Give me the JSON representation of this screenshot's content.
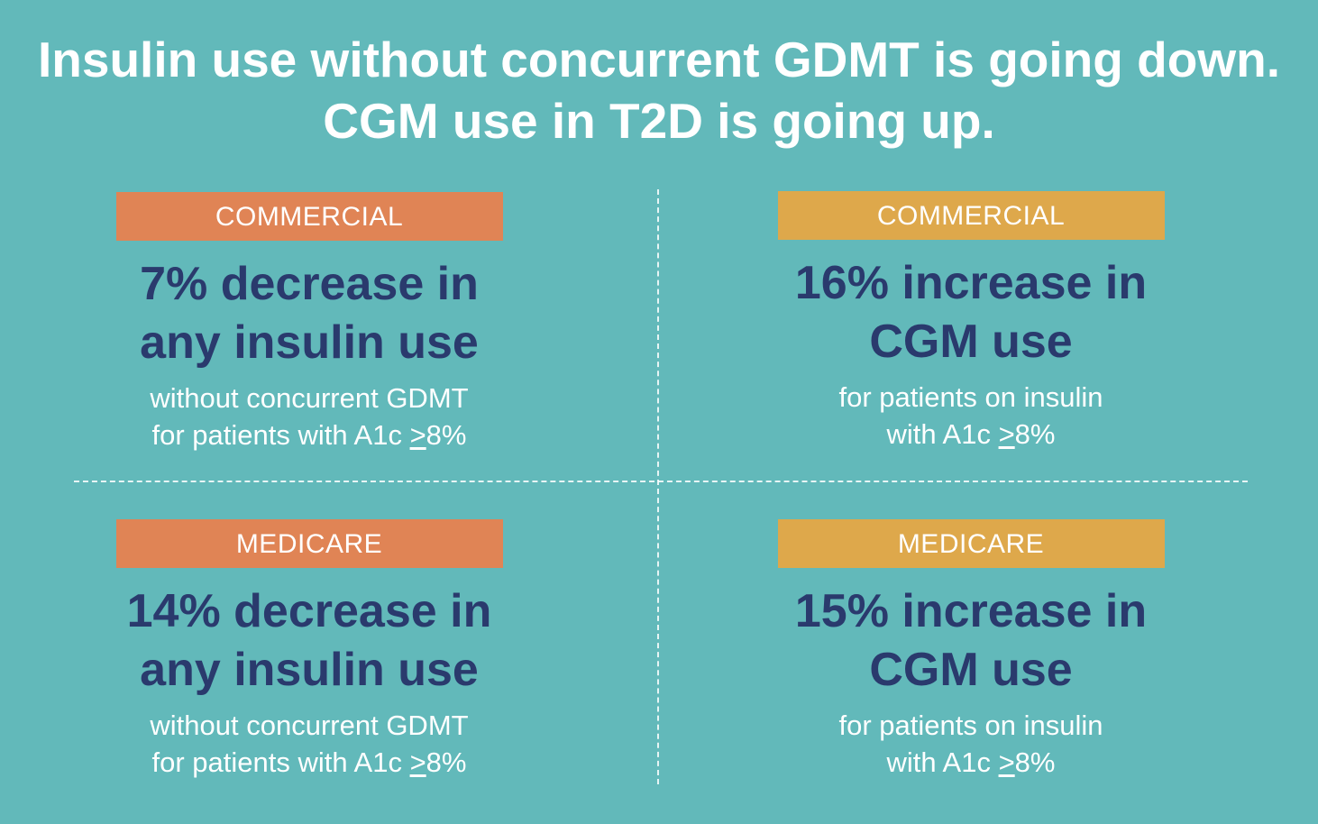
{
  "headline": {
    "line1": "Insulin use without concurrent GDMT is going down.",
    "line2": "CGM use in T2D is going up."
  },
  "colors": {
    "background": "#62b9ba",
    "badge_orange": "#e08455",
    "badge_gold": "#dea84b",
    "stat_navy": "#2a3a6d",
    "text_white": "#ffffff"
  },
  "cells": {
    "top_left": {
      "badge": "COMMERCIAL",
      "stat_line1": "7% decrease in",
      "stat_line2": "any insulin use",
      "sub_line1": "without concurrent GDMT",
      "sub_line2_prefix": "for patients with A1c ",
      "sub_line2_symbol": ">",
      "sub_line2_suffix": "8%"
    },
    "top_right": {
      "badge": "COMMERCIAL",
      "stat_line1": "16% increase in",
      "stat_line2": "CGM use",
      "sub_line1": "for patients on insulin",
      "sub_line2_prefix": "with A1c ",
      "sub_line2_symbol": ">",
      "sub_line2_suffix": "8%"
    },
    "bottom_left": {
      "badge": "MEDICARE",
      "stat_line1": "14% decrease in",
      "stat_line2": "any insulin use",
      "sub_line1": "without concurrent GDMT",
      "sub_line2_prefix": "for patients with A1c ",
      "sub_line2_symbol": ">",
      "sub_line2_suffix": "8%"
    },
    "bottom_right": {
      "badge": "MEDICARE",
      "stat_line1": "15% increase in",
      "stat_line2": "CGM use",
      "sub_line1": "for patients on insulin",
      "sub_line2_prefix": "with A1c ",
      "sub_line2_symbol": ">",
      "sub_line2_suffix": "8%"
    }
  }
}
